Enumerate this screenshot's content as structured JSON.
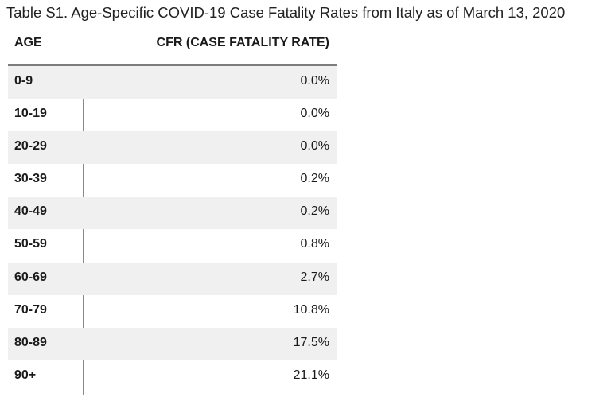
{
  "caption": "Table S1. Age-Specific COVID-19 Case Fatality Rates from Italy as of March 13, 2020",
  "table": {
    "headers": {
      "age": "AGE",
      "cfr": "CFR (CASE FATALITY RATE)"
    },
    "rows": [
      {
        "age": "0-9",
        "cfr": "0.0%"
      },
      {
        "age": "10-19",
        "cfr": "0.0%"
      },
      {
        "age": "20-29",
        "cfr": "0.0%"
      },
      {
        "age": "30-39",
        "cfr": "0.2%"
      },
      {
        "age": "40-49",
        "cfr": "0.2%"
      },
      {
        "age": "50-59",
        "cfr": "0.8%"
      },
      {
        "age": "60-69",
        "cfr": "2.7%"
      },
      {
        "age": "70-79",
        "cfr": "10.8%"
      },
      {
        "age": "80-89",
        "cfr": "17.5%"
      },
      {
        "age": "90+",
        "cfr": "21.1%"
      }
    ]
  },
  "colors": {
    "shaded_row": "#f0f0f0",
    "header_rule": "#7d7d7d",
    "column_rule": "#8a8a8a"
  }
}
